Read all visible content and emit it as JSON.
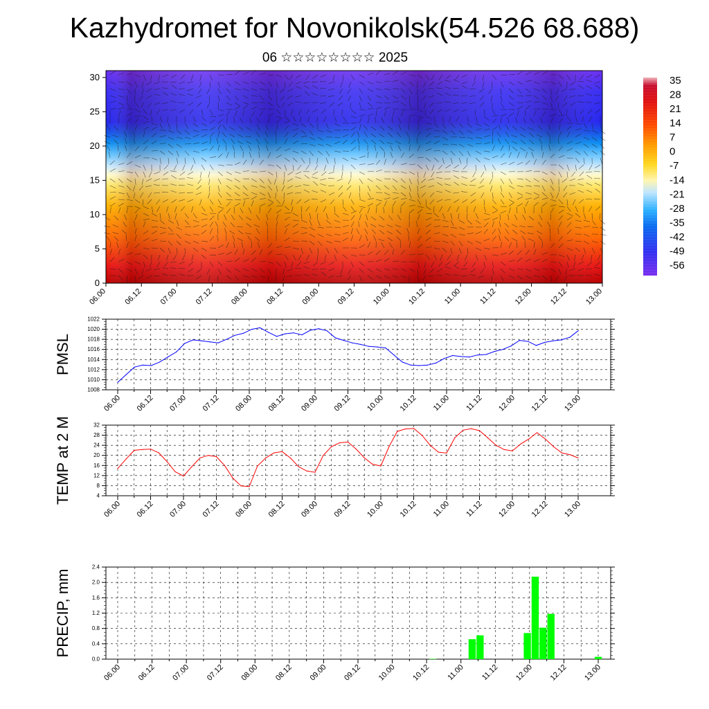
{
  "title": "Kazhydromet for Novonikolsk(54.526 68.688)",
  "subtitle": "06 ☆☆☆☆☆☆☆☆ 2025",
  "x_ticks": [
    "06.00",
    "06.12",
    "07.00",
    "07.12",
    "08.00",
    "08.12",
    "09.00",
    "09.12",
    "10.00",
    "10.12",
    "11.00",
    "11.12",
    "12.00",
    "12.12",
    "13.00"
  ],
  "chart_data": [
    {
      "type": "heatmap",
      "y_ticks": [
        0,
        5,
        10,
        15,
        20,
        25,
        30
      ],
      "ylim": [
        0,
        31
      ],
      "colorbar_labels": [
        "35",
        "28",
        "21",
        "14",
        "7",
        "0",
        "-7",
        "-14",
        "-21",
        "-28",
        "-35",
        "-42",
        "-49",
        "-56"
      ],
      "colors": {
        "hot": "#d81010",
        "warm": "#ff8c00",
        "mild": "#ffe640",
        "cold": "#9fd8ff",
        "cool": "#1aa3ff",
        "frost": "#2020f0",
        "deep": "#7a2ff0"
      }
    },
    {
      "type": "line",
      "ylabel": "PMSL",
      "ylim": [
        1008,
        1022
      ],
      "y_ticks": [
        "1022",
        "1020",
        "1018",
        "1016",
        "1014",
        "1012",
        "1010",
        "1008"
      ],
      "color": "#0000ff",
      "values": [
        1009.5,
        1011.0,
        1012.5,
        1012.9,
        1012.8,
        1013.5,
        1014.5,
        1015.5,
        1017.2,
        1017.9,
        1017.7,
        1017.5,
        1017.3,
        1018.0,
        1018.8,
        1019.2,
        1020.0,
        1020.3,
        1019.4,
        1018.6,
        1019.1,
        1019.3,
        1018.9,
        1019.8,
        1020.1,
        1019.7,
        1018.3,
        1017.8,
        1017.3,
        1017.0,
        1016.6,
        1016.5,
        1016.3,
        1014.9,
        1013.5,
        1012.9,
        1012.8,
        1012.9,
        1013.3,
        1014.2,
        1014.8,
        1014.6,
        1014.5,
        1014.9,
        1015.0,
        1015.6,
        1016.0,
        1016.7,
        1017.8,
        1017.6,
        1016.8,
        1017.4,
        1017.7,
        1017.9,
        1018.4,
        1019.7
      ]
    },
    {
      "type": "line",
      "ylabel": "TEMP at 2 M",
      "ylim": [
        4,
        32
      ],
      "y_ticks": [
        "32",
        "28",
        "24",
        "20",
        "16",
        "12",
        "8",
        "4"
      ],
      "color": "#ff0000",
      "values": [
        14.8,
        18.5,
        22.0,
        22.3,
        22.5,
        21.0,
        17.5,
        13.5,
        11.8,
        15.5,
        19.0,
        20.0,
        19.5,
        16.0,
        11.0,
        7.9,
        7.6,
        15.8,
        19.0,
        21.0,
        21.5,
        19.0,
        15.5,
        13.8,
        13.3,
        20.0,
        23.5,
        25.0,
        25.3,
        22.5,
        19.0,
        16.5,
        15.8,
        23.5,
        29.5,
        30.5,
        30.7,
        28.0,
        24.0,
        21.3,
        20.9,
        27.0,
        30.0,
        30.6,
        29.8,
        27.0,
        24.0,
        22.3,
        21.8,
        24.5,
        26.5,
        29.0,
        26.5,
        23.5,
        21.0,
        20.3,
        19.0
      ]
    },
    {
      "type": "bar",
      "ylabel": "PRECIP, mm",
      "ylim": [
        0,
        2.4
      ],
      "y_ticks": [
        "2.4",
        "2.0",
        "1.6",
        "1.2",
        "0.8",
        "0.4",
        "0.0"
      ],
      "color": "#00ff00",
      "values": [
        0,
        0,
        0,
        0,
        0,
        0,
        0,
        0,
        0,
        0,
        0,
        0,
        0,
        0,
        0,
        0,
        0,
        0,
        0,
        0,
        0,
        0,
        0,
        0,
        0,
        0,
        0,
        0,
        0,
        0,
        0,
        0,
        0,
        0,
        0,
        0,
        0,
        0,
        0,
        0,
        0.01,
        0,
        0,
        0,
        0,
        0.52,
        0.62,
        0,
        0,
        0,
        0,
        0,
        0.68,
        2.15,
        0.82,
        1.18,
        0,
        0,
        0,
        0,
        0,
        0.06
      ]
    }
  ]
}
